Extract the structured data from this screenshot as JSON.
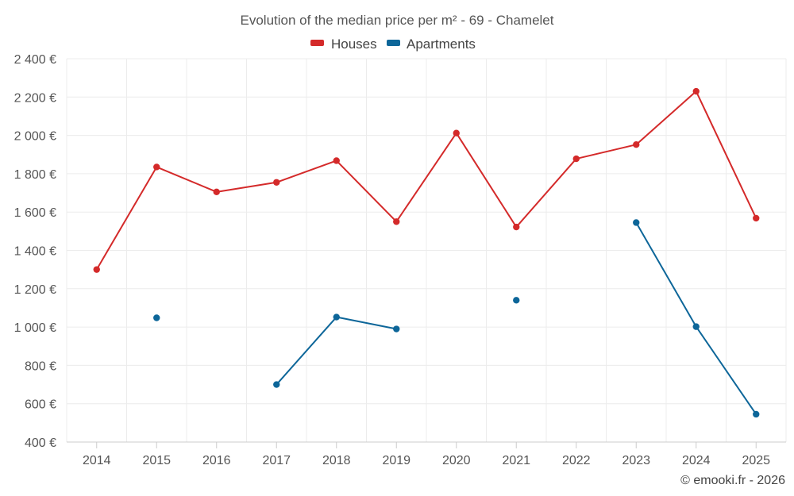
{
  "chart_data": {
    "type": "line",
    "title": "Evolution of the median price per m² - 69 - Chamelet",
    "categories": [
      "2014",
      "2015",
      "2016",
      "2017",
      "2018",
      "2019",
      "2020",
      "2021",
      "2022",
      "2023",
      "2024",
      "2025"
    ],
    "series": [
      {
        "name": "Houses",
        "color": "#d42a2a",
        "values": [
          1300,
          1835,
          1705,
          1755,
          1868,
          1550,
          2012,
          1522,
          1878,
          1952,
          2230,
          1568
        ]
      },
      {
        "name": "Apartments",
        "color": "#0d6699",
        "values": [
          null,
          1048,
          null,
          700,
          1052,
          990,
          null,
          1140,
          null,
          1545,
          1002,
          545
        ]
      }
    ],
    "ylim": [
      400,
      2400
    ],
    "yticks": [
      400,
      600,
      800,
      1000,
      1200,
      1400,
      1600,
      1800,
      2000,
      2200,
      2400
    ],
    "ytick_labels": [
      "400 €",
      "600 €",
      "800 €",
      "1 000 €",
      "1 200 €",
      "1 400 €",
      "1 600 €",
      "1 800 €",
      "2 000 €",
      "2 200 €",
      "2 400 €"
    ],
    "xlabel": "",
    "ylabel": "",
    "grid": true,
    "legend_position": "top-center"
  },
  "credit": "© emooki.fr - 2026"
}
